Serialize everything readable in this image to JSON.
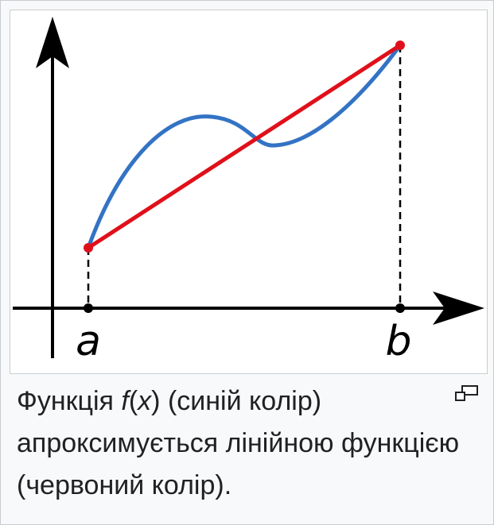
{
  "figure": {
    "label_a": "a",
    "label_b": "b",
    "colors": {
      "function": "#3373c4",
      "linear": "#e0101a",
      "axes": "#000000"
    }
  },
  "caption": {
    "part1": "Функція ",
    "f": "f",
    "paren_open": "(",
    "x": "x",
    "part2": ") (синій колір) апроксимується лінійною функцією (червоний колір)."
  },
  "icons": {
    "enlarge": "magnify-clip-icon"
  }
}
